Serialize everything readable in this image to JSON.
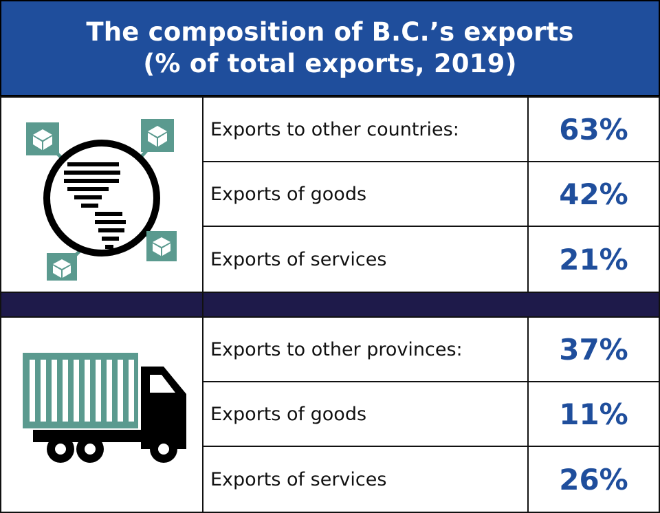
{
  "chart_data": {
    "type": "table",
    "title_line1": "The composition of B.C.’s exports",
    "title_line2": "(% of total exports, 2019)",
    "groups": [
      {
        "icon": "globe-icon",
        "rows": [
          {
            "label": "Exports to other countries:",
            "value": "63%"
          },
          {
            "label": "Exports of goods",
            "value": "42%"
          },
          {
            "label": "Exports of services",
            "value": "21%"
          }
        ]
      },
      {
        "icon": "truck-icon",
        "rows": [
          {
            "label": "Exports to other provinces:",
            "value": "37%"
          },
          {
            "label": "Exports of goods",
            "value": "11%"
          },
          {
            "label": "Exports of services",
            "value": "26%"
          }
        ]
      }
    ]
  },
  "colors": {
    "header_blue": "#1f4e9c",
    "value_blue": "#1f4e9c",
    "divider_navy": "#1e1a4a",
    "icon_teal": "#5b9a8f"
  }
}
